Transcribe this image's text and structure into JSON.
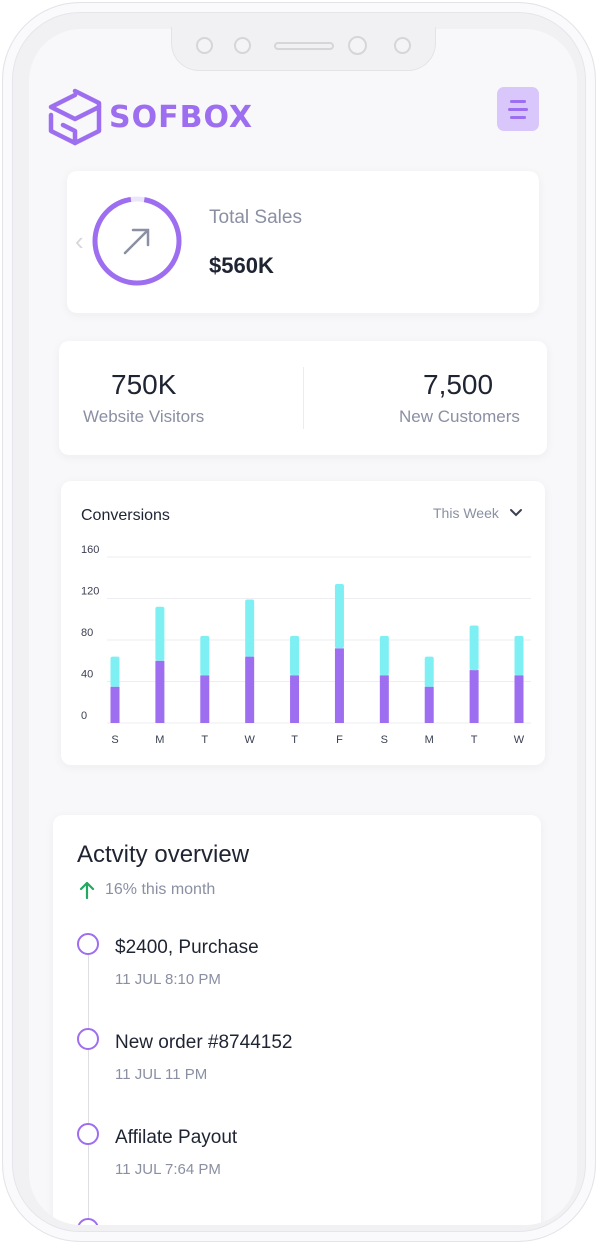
{
  "brand": {
    "name": "SOFBOX",
    "accent": "#9d6ef0",
    "logo_icon": "hex-box-logo-icon"
  },
  "header": {
    "menu_icon": "hamburger-menu-icon"
  },
  "sales": {
    "title": "Total Sales",
    "value": "$560K",
    "icon": "arrow-up-right-icon",
    "chevron_icon": "chevron-left-icon"
  },
  "stats": [
    {
      "value": "750K",
      "label": "Website Visitors"
    },
    {
      "value": "7,500",
      "label": "New Customers"
    }
  ],
  "conversions": {
    "title": "Conversions",
    "filter": "This Week",
    "filter_icon": "chevron-down-icon"
  },
  "chart_data": {
    "type": "bar",
    "stacked": true,
    "categories": [
      "S",
      "M",
      "T",
      "W",
      "T",
      "F",
      "S",
      "M",
      "T",
      "W"
    ],
    "series": [
      {
        "values": [
          35,
          60,
          46,
          64,
          46,
          72,
          46,
          35,
          51,
          46
        ],
        "color": "#9d6ef0"
      },
      {
        "values": [
          29,
          52,
          38,
          55,
          38,
          62,
          38,
          29,
          43,
          38
        ],
        "color": "#7ef0f4"
      }
    ],
    "yticks": [
      0,
      40,
      80,
      120,
      160
    ],
    "ylim": [
      0,
      160
    ],
    "grid": true,
    "title": "Conversions"
  },
  "activity": {
    "title": "Actvity overview",
    "trend_icon": "arrow-up-icon",
    "trend_color": "#22a861",
    "trend_text": "16% this month",
    "items": [
      {
        "title": "$2400, Purchase",
        "time": "11 JUL 8:10 PM"
      },
      {
        "title": "New order #8744152",
        "time": "11 JUL 11 PM"
      },
      {
        "title": "Affilate Payout",
        "time": "11 JUL 7:64 PM"
      }
    ]
  }
}
